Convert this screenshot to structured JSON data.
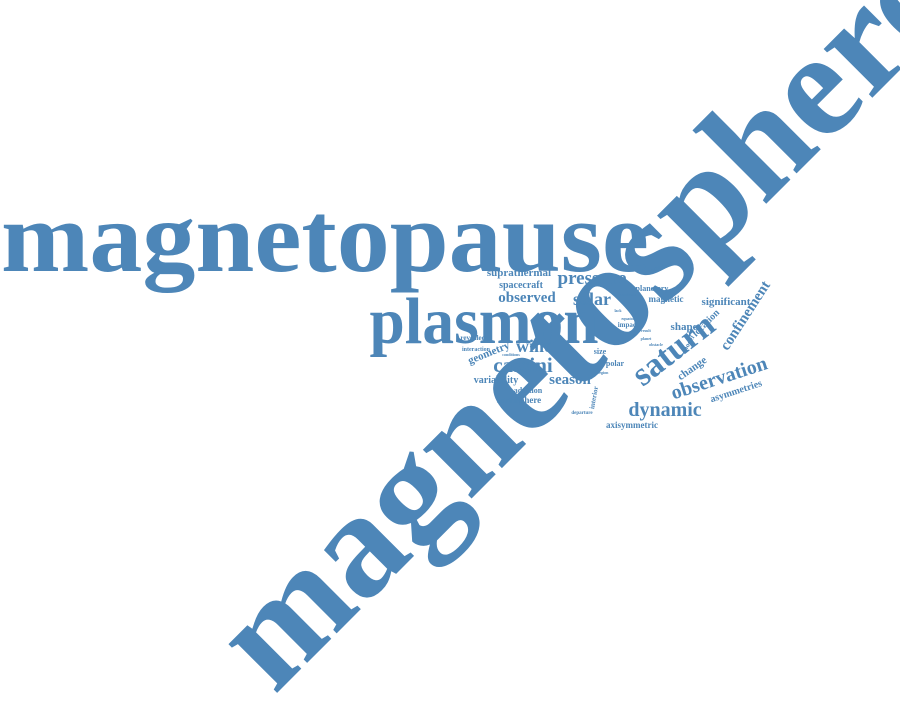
{
  "colors": {
    "word": "#4d86b8",
    "background": "#ffffff"
  },
  "words": [
    {
      "text": "magnetosphere",
      "weight": 100
    },
    {
      "text": "magnetopause",
      "weight": 88
    },
    {
      "text": "plasmon",
      "weight": 42
    },
    {
      "text": "saturn",
      "weight": 26
    },
    {
      "text": "pressure",
      "weight": 16
    },
    {
      "text": "solar",
      "weight": 15
    },
    {
      "text": "observed",
      "weight": 13
    },
    {
      "text": "cassini",
      "weight": 15
    },
    {
      "text": "wind",
      "weight": 15
    },
    {
      "text": "season",
      "weight": 12
    },
    {
      "text": "dynamic",
      "weight": 17
    },
    {
      "text": "observation",
      "weight": 17
    },
    {
      "text": "confinement",
      "weight": 13
    },
    {
      "text": "suprathermal",
      "weight": 10
    },
    {
      "text": "spacecraft",
      "weight": 9
    },
    {
      "text": "planetary",
      "weight": 8
    },
    {
      "text": "magnetic",
      "weight": 8
    },
    {
      "text": "significant",
      "weight": 9
    },
    {
      "text": "location",
      "weight": 9
    },
    {
      "text": "shape",
      "weight": 9
    },
    {
      "text": "change",
      "weight": 9
    },
    {
      "text": "asymmetries",
      "weight": 9
    },
    {
      "text": "geometry",
      "weight": 9
    },
    {
      "text": "variability",
      "weight": 8
    },
    {
      "text": "hemisphere",
      "weight": 8
    },
    {
      "text": "addition",
      "weight": 7
    },
    {
      "text": "axisymmetric",
      "weight": 8
    },
    {
      "text": "size",
      "weight": 7
    },
    {
      "text": "polar",
      "weight": 7
    },
    {
      "text": "impact",
      "weight": 6
    },
    {
      "text": "revealed",
      "weight": 6
    },
    {
      "text": "interaction",
      "weight": 5
    },
    {
      "text": "interior",
      "weight": 6
    },
    {
      "text": "model",
      "weight": 6
    },
    {
      "text": "agreement",
      "weight": 4
    },
    {
      "text": "consistent",
      "weight": 3
    },
    {
      "text": "departure",
      "weight": 4
    },
    {
      "text": "conditions",
      "weight": 3
    },
    {
      "text": "obstacle",
      "weight": 3
    },
    {
      "text": "planet",
      "weight": 3
    },
    {
      "text": "equator",
      "weight": 3
    },
    {
      "text": "flux",
      "weight": 3
    },
    {
      "text": "result",
      "weight": 3
    },
    {
      "text": "region",
      "weight": 3
    },
    {
      "text": "lack",
      "weight": 3
    }
  ]
}
